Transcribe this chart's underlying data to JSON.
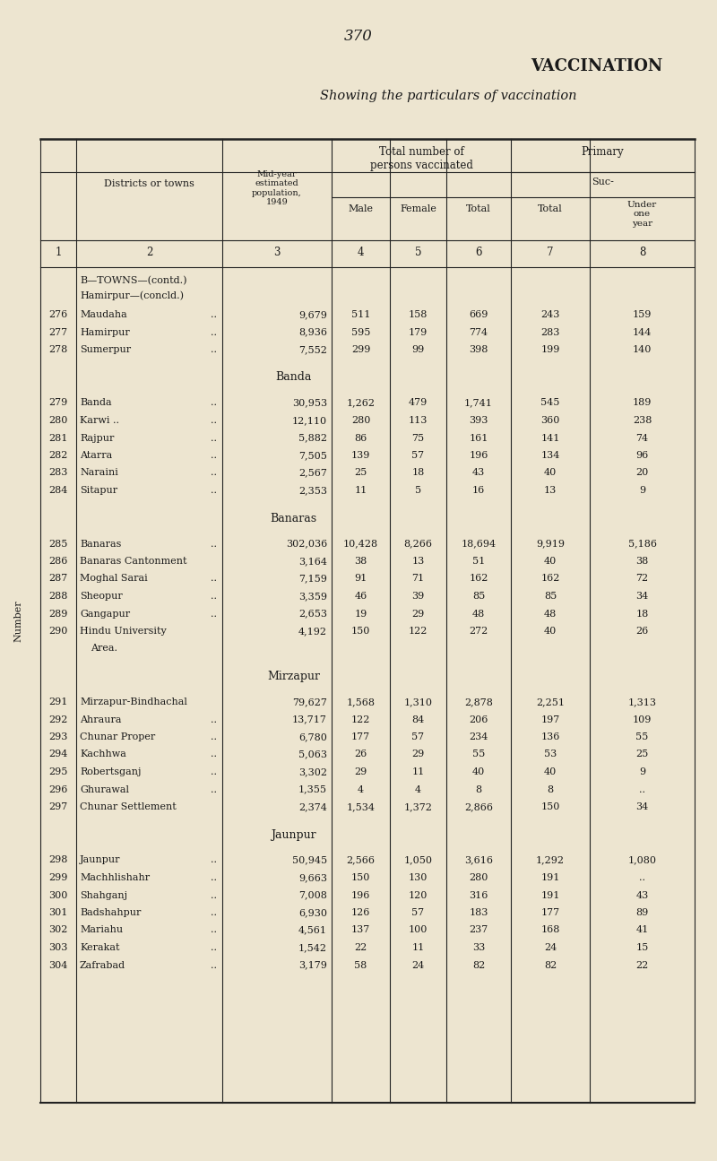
{
  "page_number": "370",
  "title": "VACCINATION",
  "subtitle": "Showing the particulars of vaccination",
  "bg_color": "#ede5d0",
  "text_color": "#1a1a1a",
  "rows": [
    {
      "num": "276",
      "name": "Maudaha",
      "dots": true,
      "pop": "9,679",
      "male": "511",
      "female": "158",
      "total": "669",
      "prim_total": "243",
      "under_one": "159"
    },
    {
      "num": "277",
      "name": "Hamirpur",
      "dots": true,
      "pop": "8,936",
      "male": "595",
      "female": "179",
      "total": "774",
      "prim_total": "283",
      "under_one": "144"
    },
    {
      "num": "278",
      "name": "Sumerpur",
      "dots": true,
      "pop": "7,552",
      "male": "299",
      "female": "99",
      "total": "398",
      "prim_total": "199",
      "under_one": "140"
    },
    {
      "num": "",
      "name": "Banda",
      "section": true
    },
    {
      "num": "279",
      "name": "Banda",
      "dots": true,
      "pop": "30,953",
      "male": "1,262",
      "female": "479",
      "total": "1,741",
      "prim_total": "545",
      "under_one": "189"
    },
    {
      "num": "280",
      "name": "Karwi ..",
      "dots": true,
      "pop": "12,110",
      "male": "280",
      "female": "113",
      "total": "393",
      "prim_total": "360",
      "under_one": "238"
    },
    {
      "num": "281",
      "name": "Rajpur",
      "dots": true,
      "pop": "5,882",
      "male": "86",
      "female": "75",
      "total": "161",
      "prim_total": "141",
      "under_one": "74"
    },
    {
      "num": "282",
      "name": "Atarra",
      "dots": true,
      "pop": "7,505",
      "male": "139",
      "female": "57",
      "total": "196",
      "prim_total": "134",
      "under_one": "96"
    },
    {
      "num": "283",
      "name": "Naraini",
      "dots": true,
      "pop": "2,567",
      "male": "25",
      "female": "18",
      "total": "43",
      "prim_total": "40",
      "under_one": "20"
    },
    {
      "num": "284",
      "name": "Sitapur",
      "dots": true,
      "pop": "2,353",
      "male": "11",
      "female": "5",
      "total": "16",
      "prim_total": "13",
      "under_one": "9"
    },
    {
      "num": "",
      "name": "Banaras",
      "section": true
    },
    {
      "num": "285",
      "name": "Banaras",
      "dots": true,
      "pop": "302,036",
      "male": "10,428",
      "female": "8,266",
      "total": "18,694",
      "prim_total": "9,919",
      "under_one": "5,186"
    },
    {
      "num": "286",
      "name": "Banaras Cantonment",
      "dots": false,
      "pop": "3,164",
      "male": "38",
      "female": "13",
      "total": "51",
      "prim_total": "40",
      "under_one": "38"
    },
    {
      "num": "287",
      "name": "Moghal Sarai",
      "dots": true,
      "pop": "7,159",
      "male": "91",
      "female": "71",
      "total": "162",
      "prim_total": "162",
      "under_one": "72"
    },
    {
      "num": "288",
      "name": "Sheopur",
      "dots": true,
      "pop": "3,359",
      "male": "46",
      "female": "39",
      "total": "85",
      "prim_total": "85",
      "under_one": "34"
    },
    {
      "num": "289",
      "name": "Gangapur",
      "dots": true,
      "pop": "2,653",
      "male": "19",
      "female": "29",
      "total": "48",
      "prim_total": "48",
      "under_one": "18"
    },
    {
      "num": "290",
      "name": "Hindu University\nArea.",
      "dots": false,
      "pop": "4,192",
      "male": "150",
      "female": "122",
      "total": "272",
      "prim_total": "40",
      "under_one": "26",
      "extra_height": true
    },
    {
      "num": "",
      "name": "Mirzapur",
      "section": true
    },
    {
      "num": "291",
      "name": "Mirzapur-Bindhachal",
      "dots": false,
      "pop": "79,627",
      "male": "1,568",
      "female": "1,310",
      "total": "2,878",
      "prim_total": "2,251",
      "under_one": "1,313"
    },
    {
      "num": "292",
      "name": "Ahraura",
      "dots": true,
      "pop": "13,717",
      "male": "122",
      "female": "84",
      "total": "206",
      "prim_total": "197",
      "under_one": "109"
    },
    {
      "num": "293",
      "name": "Chunar Proper",
      "dots": true,
      "pop": "6,780",
      "male": "177",
      "female": "57",
      "total": "234",
      "prim_total": "136",
      "under_one": "55"
    },
    {
      "num": "294",
      "name": "Kachhwa",
      "dots": true,
      "pop": "5,063",
      "male": "26",
      "female": "29",
      "total": "55",
      "prim_total": "53",
      "under_one": "25"
    },
    {
      "num": "295",
      "name": "Robertsganj",
      "dots": true,
      "pop": "3,302",
      "male": "29",
      "female": "11",
      "total": "40",
      "prim_total": "40",
      "under_one": "9"
    },
    {
      "num": "296",
      "name": "Ghurawal",
      "dots": true,
      "pop": "1,355",
      "male": "4",
      "female": "4",
      "total": "8",
      "prim_total": "8",
      "under_one": ".."
    },
    {
      "num": "297",
      "name": "Chunar Settlement",
      "dots": false,
      "pop": "2,374",
      "male": "1,534",
      "female": "1,372",
      "total": "2,866",
      "prim_total": "150",
      "under_one": "34"
    },
    {
      "num": "",
      "name": "Jaunpur",
      "section": true
    },
    {
      "num": "298",
      "name": "Jaunpur",
      "dots": true,
      "pop": "50,945",
      "male": "2,566",
      "female": "1,050",
      "total": "3,616",
      "prim_total": "1,292",
      "under_one": "1,080"
    },
    {
      "num": "299",
      "name": "Machhlishahr",
      "dots": true,
      "pop": "9,663",
      "male": "150",
      "female": "130",
      "total": "280",
      "prim_total": "191",
      "under_one": ".."
    },
    {
      "num": "300",
      "name": "Shahganj",
      "dots": true,
      "pop": "7,008",
      "male": "196",
      "female": "120",
      "total": "316",
      "prim_total": "191",
      "under_one": "43"
    },
    {
      "num": "301",
      "name": "Badshahpur",
      "dots": true,
      "pop": "6,930",
      "male": "126",
      "female": "57",
      "total": "183",
      "prim_total": "177",
      "under_one": "89"
    },
    {
      "num": "302",
      "name": "Mariahu",
      "dots": true,
      "pop": "4,561",
      "male": "137",
      "female": "100",
      "total": "237",
      "prim_total": "168",
      "under_one": "41"
    },
    {
      "num": "303",
      "name": "Kerakat",
      "dots": true,
      "pop": "1,542",
      "male": "22",
      "female": "11",
      "total": "33",
      "prim_total": "24",
      "under_one": "15"
    },
    {
      "num": "304",
      "name": "Zafrabad",
      "dots": true,
      "pop": "3,179",
      "male": "58",
      "female": "24",
      "total": "82",
      "prim_total": "82",
      "under_one": "22"
    }
  ]
}
